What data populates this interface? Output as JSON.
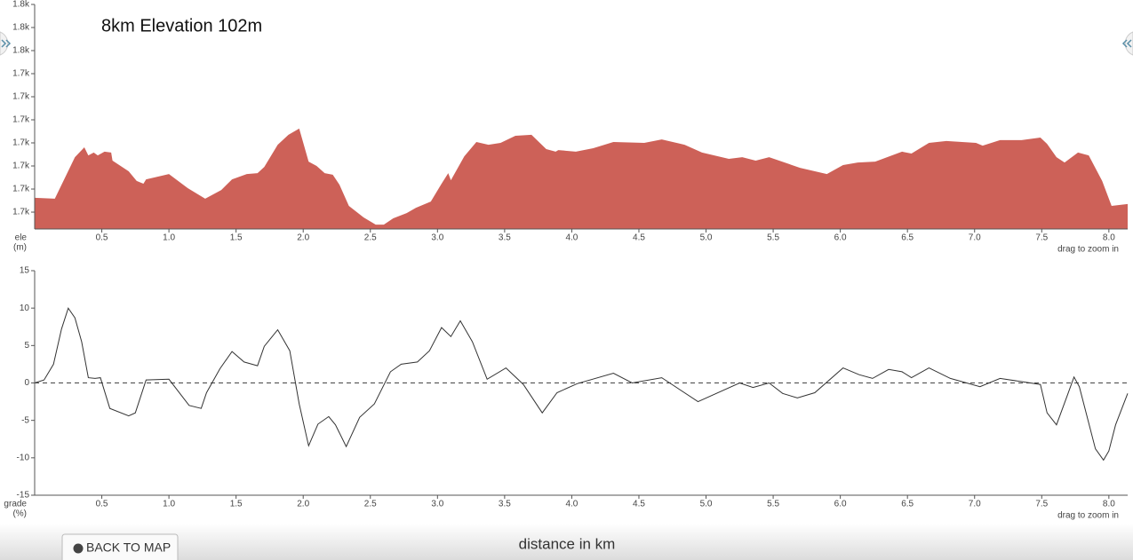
{
  "chart_data": [
    {
      "type": "area",
      "title": "8km Elevation 102m",
      "ylabel": [
        "ele",
        "(m)"
      ],
      "note": "drag to zoom in",
      "color": "#cd6158",
      "x": [
        0,
        0.15,
        0.3,
        0.37,
        0.4,
        0.44,
        0.47,
        0.52,
        0.57,
        0.58,
        0.7,
        0.76,
        0.81,
        0.83,
        1.0,
        1.14,
        1.27,
        1.39,
        1.47,
        1.58,
        1.66,
        1.71,
        1.81,
        1.89,
        1.97,
        2.04,
        2.1,
        2.16,
        2.22,
        2.27,
        2.34,
        2.45,
        2.54,
        2.6,
        2.67,
        2.77,
        2.84,
        2.95,
        3.03,
        3.08,
        3.1,
        3.2,
        3.29,
        3.38,
        3.47,
        3.58,
        3.7,
        3.81,
        3.88,
        3.9,
        4.03,
        4.16,
        4.31,
        4.54,
        4.67,
        4.84,
        4.97,
        5.17,
        5.27,
        5.37,
        5.47,
        5.7,
        5.9,
        6.02,
        6.13,
        6.26,
        6.46,
        6.53,
        6.66,
        6.79,
        7.01,
        7.06,
        7.19,
        7.35,
        7.49,
        7.54,
        7.61,
        7.67,
        7.77,
        7.85,
        7.95,
        8.02,
        8.14
      ],
      "values": [
        1686.2,
        1685.8,
        1703.8,
        1708.1,
        1704.6,
        1705.8,
        1704.6,
        1706.2,
        1705.8,
        1702.3,
        1697.7,
        1693.5,
        1692.3,
        1694.2,
        1696.5,
        1690.4,
        1685.8,
        1689.6,
        1694.2,
        1696.5,
        1696.9,
        1699.6,
        1709.2,
        1713.5,
        1716.2,
        1701.9,
        1700.0,
        1696.9,
        1696.2,
        1691.9,
        1682.7,
        1677.7,
        1674.6,
        1674.6,
        1677.3,
        1679.6,
        1681.9,
        1684.6,
        1692.3,
        1696.9,
        1693.8,
        1704.2,
        1710.4,
        1709.2,
        1710.0,
        1713.1,
        1713.5,
        1707.3,
        1706.2,
        1706.9,
        1706.2,
        1707.7,
        1710.4,
        1710.0,
        1711.5,
        1709.2,
        1705.8,
        1703.1,
        1703.8,
        1702.3,
        1703.8,
        1699.2,
        1696.5,
        1700.4,
        1701.5,
        1701.9,
        1706.2,
        1705.4,
        1710.0,
        1710.8,
        1710.0,
        1708.8,
        1711.2,
        1711.2,
        1712.3,
        1709.6,
        1703.8,
        1701.5,
        1705.8,
        1704.6,
        1693.5,
        1682.7,
        1683.5
      ],
      "xlim": [
        0,
        8.14
      ],
      "xticks": [
        0.5,
        {
          "value": 1,
          "label": "1.0"
        },
        1.5,
        {
          "value": 2,
          "label": "2.0"
        },
        2.5,
        {
          "value": 3,
          "label": "3.0"
        },
        3.5,
        {
          "value": 4,
          "label": "4.0"
        },
        4.5,
        {
          "value": 5,
          "label": "5.0"
        },
        5.5,
        {
          "value": 6,
          "label": "6.0"
        },
        6.5,
        {
          "value": 7,
          "label": "7.0"
        },
        7.5,
        {
          "value": 8,
          "label": "8.0"
        }
      ],
      "ylim": [
        1672.7,
        1770
      ],
      "yticks": [
        {
          "value": 1680,
          "label": "1.7k"
        },
        {
          "value": 1690,
          "label": "1.7k"
        },
        {
          "value": 1700,
          "label": "1.7k"
        },
        {
          "value": 1710,
          "label": "1.7k"
        },
        {
          "value": 1720,
          "label": "1.7k"
        },
        {
          "value": 1730,
          "label": "1.7k"
        },
        {
          "value": 1740,
          "label": "1.7k"
        },
        {
          "value": 1750,
          "label": "1.8k"
        },
        {
          "value": 1760,
          "label": "1.8k"
        },
        {
          "value": 1770,
          "label": "1.8k"
        }
      ]
    },
    {
      "type": "line",
      "ylabel": [
        "grade",
        "(%)"
      ],
      "note": "drag to zoom in",
      "color": "#333333",
      "x": [
        0,
        0.07,
        0.14,
        0.2,
        0.25,
        0.3,
        0.35,
        0.4,
        0.45,
        0.49,
        0.56,
        0.7,
        0.75,
        0.83,
        1.0,
        1.15,
        1.24,
        1.28,
        1.38,
        1.47,
        1.56,
        1.66,
        1.71,
        1.81,
        1.9,
        1.97,
        2.04,
        2.11,
        2.19,
        2.24,
        2.32,
        2.42,
        2.53,
        2.65,
        2.73,
        2.85,
        2.94,
        3.03,
        3.1,
        3.17,
        3.26,
        3.37,
        3.51,
        3.64,
        3.78,
        3.89,
        4.04,
        4.31,
        4.45,
        4.67,
        4.94,
        5.25,
        5.35,
        5.47,
        5.57,
        5.68,
        5.81,
        6.02,
        6.14,
        6.24,
        6.36,
        6.46,
        6.53,
        6.66,
        6.82,
        7.04,
        7.19,
        7.49,
        7.54,
        7.61,
        7.69,
        7.74,
        7.78,
        7.9,
        7.96,
        8.0,
        8.05,
        8.14
      ],
      "values": [
        0,
        0.4,
        2.5,
        7.2,
        10.0,
        8.7,
        5.5,
        0.7,
        0.6,
        0.7,
        -3.4,
        -4.4,
        -4.0,
        0.4,
        0.5,
        -3.0,
        -3.4,
        -1.3,
        1.9,
        4.2,
        2.8,
        2.3,
        4.9,
        7.1,
        4.3,
        -2.8,
        -8.4,
        -5.5,
        -4.5,
        -5.6,
        -8.5,
        -4.6,
        -2.8,
        1.5,
        2.5,
        2.8,
        4.3,
        7.4,
        6.2,
        8.3,
        5.5,
        0.5,
        2.0,
        -0.2,
        -4.0,
        -1.3,
        -0.1,
        1.3,
        0,
        0.7,
        -2.5,
        0,
        -0.6,
        0,
        -1.4,
        -2.0,
        -1.3,
        2.0,
        1.1,
        0.6,
        1.8,
        1.5,
        0.7,
        2.0,
        0.6,
        -0.5,
        0.6,
        -0.2,
        -4.0,
        -5.6,
        -1.7,
        0.8,
        -0.5,
        -8.8,
        -10.3,
        -9.1,
        -5.6,
        -1.4
      ],
      "xlim": [
        0,
        8.14
      ],
      "xticks": [
        0.5,
        {
          "value": 1,
          "label": "1.0"
        },
        1.5,
        {
          "value": 2,
          "label": "2.0"
        },
        2.5,
        {
          "value": 3,
          "label": "3.0"
        },
        3.5,
        {
          "value": 4,
          "label": "4.0"
        },
        4.5,
        {
          "value": 5,
          "label": "5.0"
        },
        5.5,
        {
          "value": 6,
          "label": "6.0"
        },
        6.5,
        {
          "value": 7,
          "label": "7.0"
        },
        7.5,
        {
          "value": 8,
          "label": "8.0"
        }
      ],
      "ylim": [
        -15,
        15
      ],
      "yticks": [
        15,
        10,
        5,
        0,
        -5,
        -10,
        -15
      ]
    }
  ],
  "footer": {
    "axis_label": "distance in km",
    "back_button": "BACK TO MAP"
  }
}
